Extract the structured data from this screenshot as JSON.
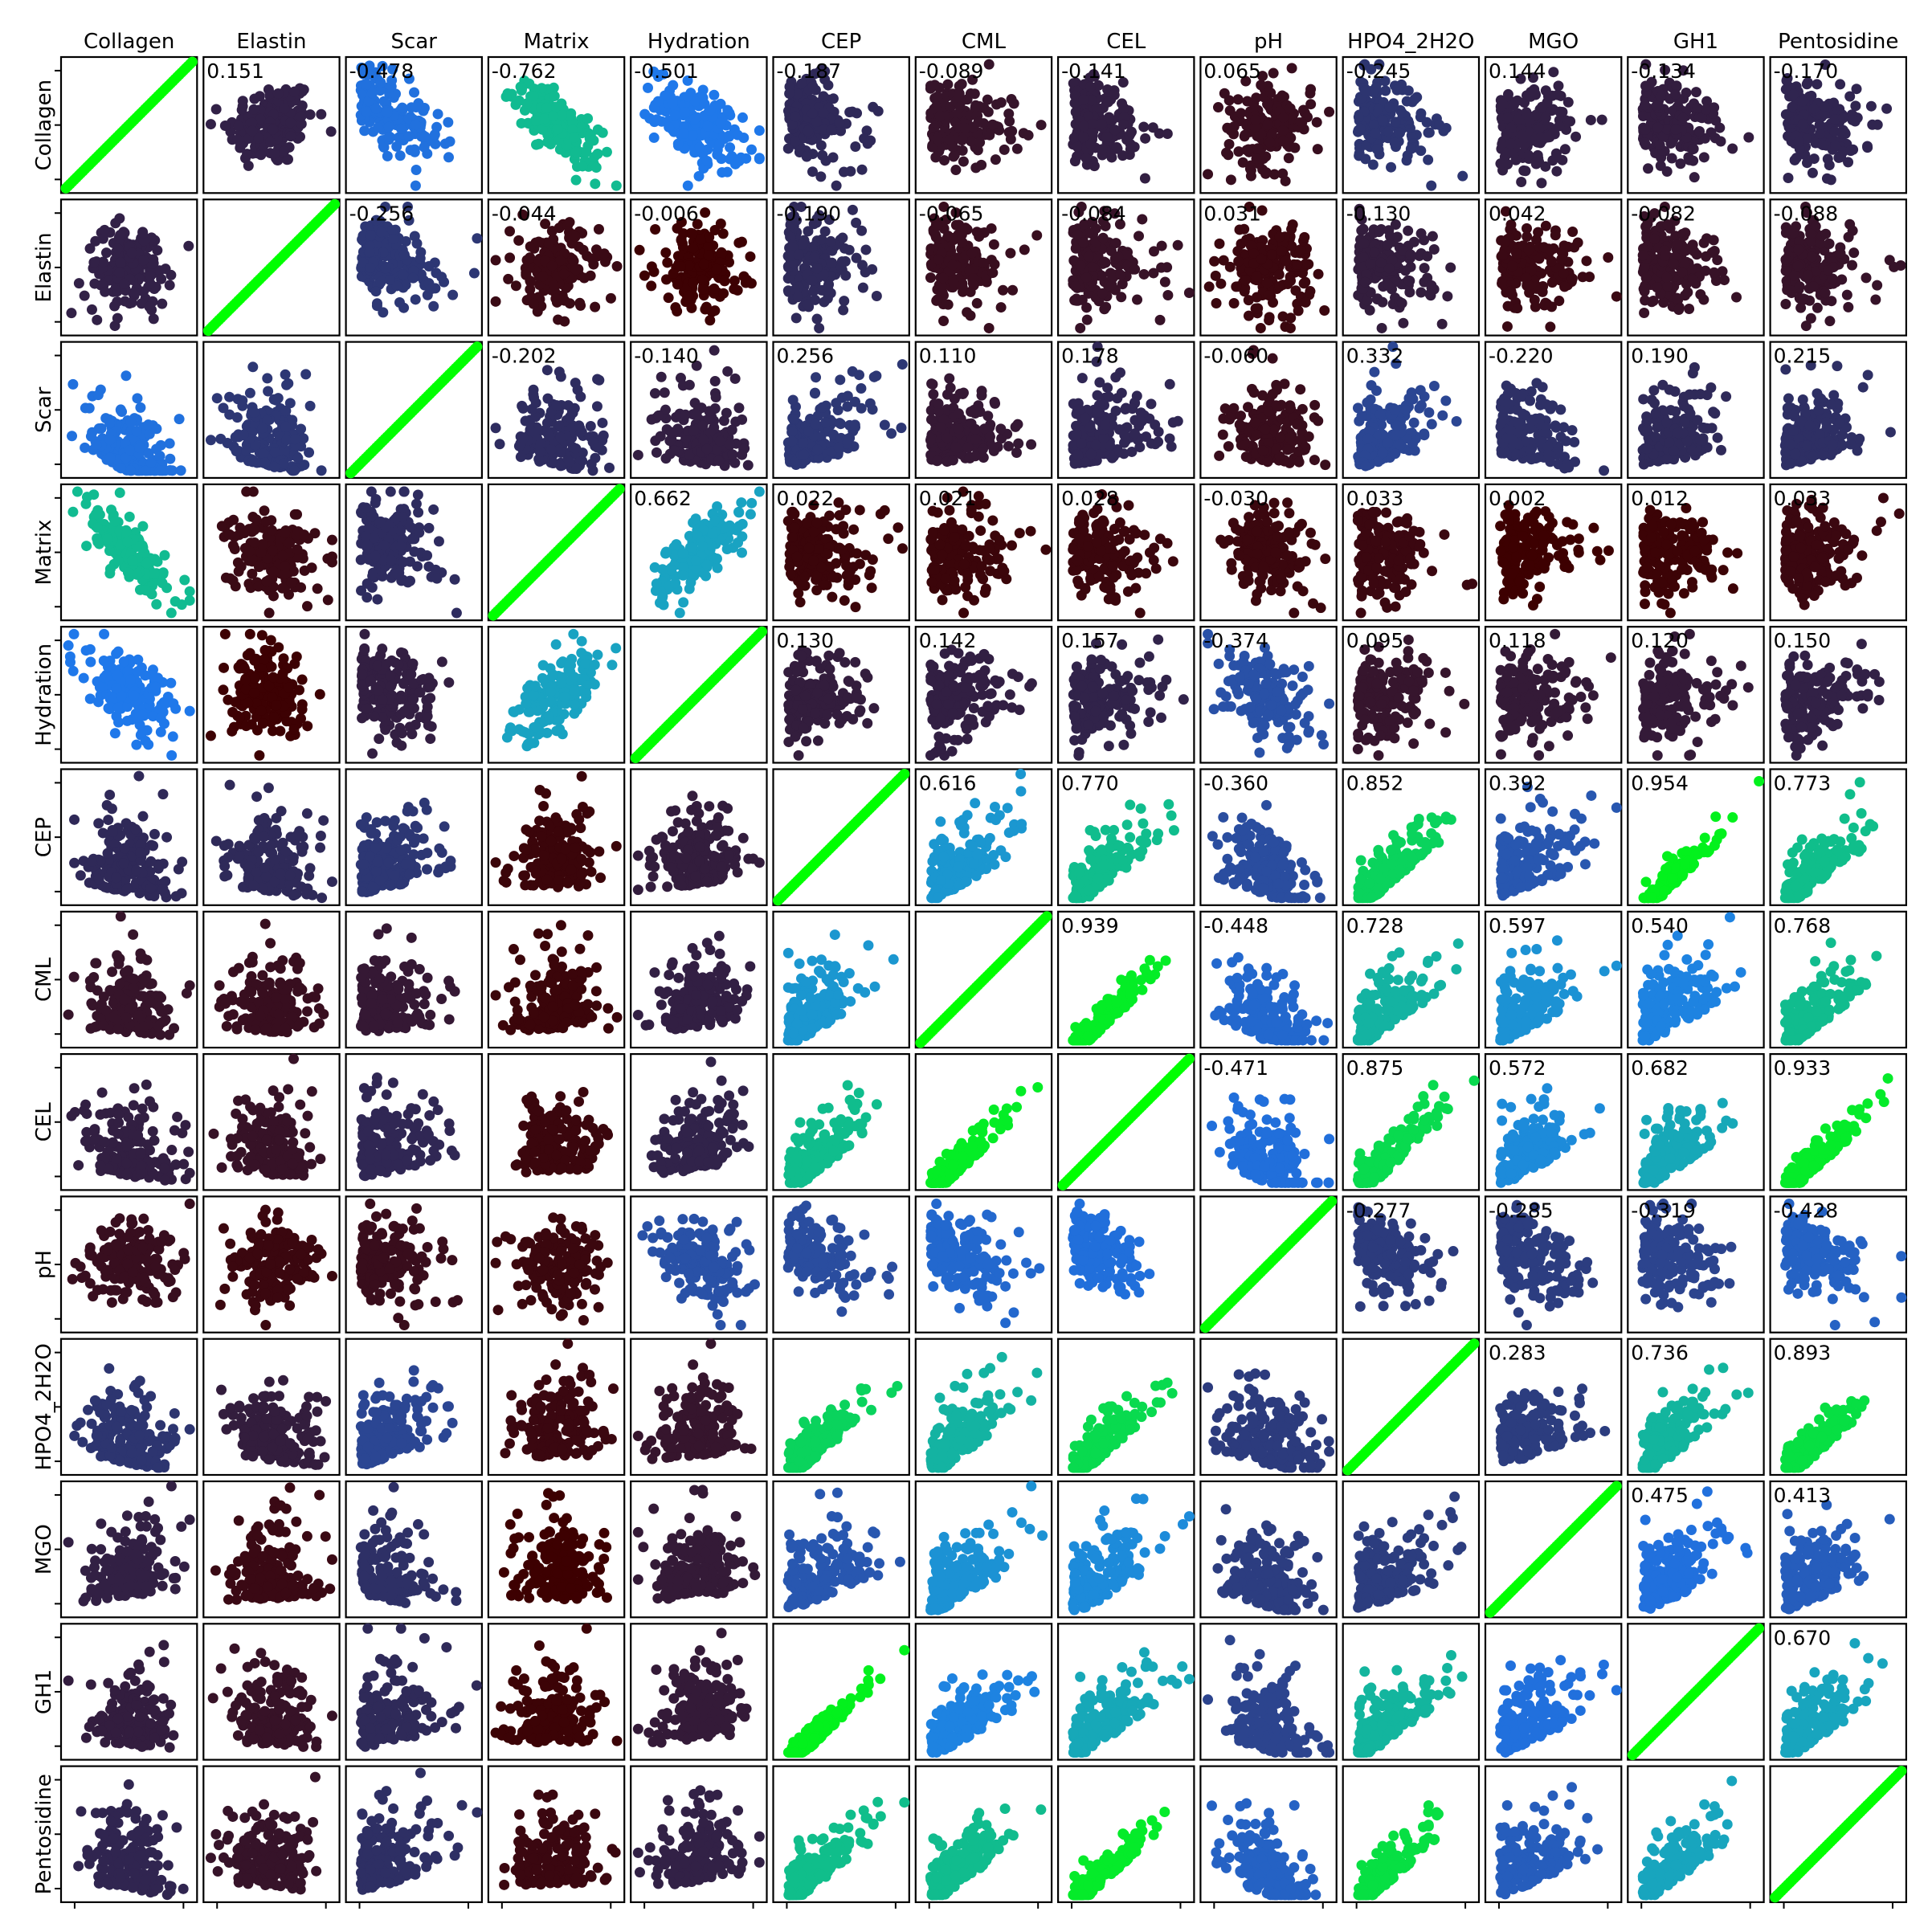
{
  "chart_data": {
    "type": "scatter",
    "subtype": "scatter-matrix",
    "title": "",
    "variables": [
      "Collagen",
      "Elastin",
      "Scar",
      "Matrix",
      "Hydration",
      "CEP",
      "CML",
      "CEL",
      "pH",
      "HPO4_2H2O",
      "MGO",
      "GH1",
      "Pentosidine"
    ],
    "correlation": [
      [
        1.0,
        0.151,
        -0.478,
        -0.762,
        -0.501,
        -0.187,
        -0.089,
        -0.141,
        0.065,
        -0.245,
        0.144,
        -0.134,
        -0.17
      ],
      [
        0.151,
        1.0,
        -0.256,
        -0.044,
        -0.006,
        -0.19,
        -0.065,
        -0.084,
        0.031,
        -0.13,
        0.042,
        -0.082,
        -0.088
      ],
      [
        -0.478,
        -0.256,
        1.0,
        -0.202,
        -0.14,
        0.256,
        0.11,
        0.178,
        -0.06,
        0.332,
        -0.22,
        0.19,
        0.215
      ],
      [
        -0.762,
        -0.044,
        -0.202,
        1.0,
        0.662,
        0.022,
        0.021,
        0.028,
        -0.03,
        0.033,
        0.002,
        0.012,
        0.033
      ],
      [
        -0.501,
        -0.006,
        -0.14,
        0.662,
        1.0,
        0.13,
        0.142,
        0.157,
        -0.374,
        0.095,
        0.118,
        0.12,
        0.15
      ],
      [
        -0.187,
        -0.19,
        0.256,
        0.022,
        0.13,
        1.0,
        0.616,
        0.77,
        -0.36,
        0.852,
        0.392,
        0.954,
        0.773
      ],
      [
        -0.089,
        -0.065,
        0.11,
        0.021,
        0.142,
        0.616,
        1.0,
        0.939,
        -0.448,
        0.728,
        0.597,
        0.54,
        0.768
      ],
      [
        -0.141,
        -0.084,
        0.178,
        0.028,
        0.157,
        0.77,
        0.939,
        1.0,
        -0.471,
        0.875,
        0.572,
        0.682,
        0.933
      ],
      [
        0.065,
        0.031,
        -0.06,
        -0.03,
        -0.374,
        -0.36,
        -0.448,
        -0.471,
        1.0,
        -0.277,
        -0.285,
        -0.319,
        -0.428
      ],
      [
        -0.245,
        -0.13,
        0.332,
        0.033,
        0.095,
        0.852,
        0.728,
        0.875,
        -0.277,
        1.0,
        0.283,
        0.736,
        0.893
      ],
      [
        0.144,
        0.042,
        -0.22,
        0.002,
        0.118,
        0.392,
        0.597,
        0.572,
        -0.285,
        0.283,
        1.0,
        0.475,
        0.413
      ],
      [
        -0.134,
        -0.082,
        0.19,
        0.012,
        0.12,
        0.954,
        0.54,
        0.682,
        -0.319,
        0.736,
        0.475,
        1.0,
        0.67
      ],
      [
        -0.17,
        -0.088,
        0.215,
        0.033,
        0.15,
        0.773,
        0.768,
        0.933,
        -0.428,
        0.893,
        0.413,
        0.67,
        1.0
      ]
    ],
    "labels_shown": "upper-triangle",
    "diagonal": "identity scatter",
    "color_scale": {
      "description": "marker color encodes |correlation|",
      "stops": [
        {
          "at": 0.0,
          "color": "#3d0000"
        },
        {
          "at": 0.2,
          "color": "#2e2c5e"
        },
        {
          "at": 0.35,
          "color": "#2b4a9a"
        },
        {
          "at": 0.5,
          "color": "#1f78ea"
        },
        {
          "at": 0.65,
          "color": "#1aa0c8"
        },
        {
          "at": 0.8,
          "color": "#0ec47e"
        },
        {
          "at": 1.0,
          "color": "#00ff00"
        }
      ]
    },
    "grid": false,
    "legend": "none"
  }
}
